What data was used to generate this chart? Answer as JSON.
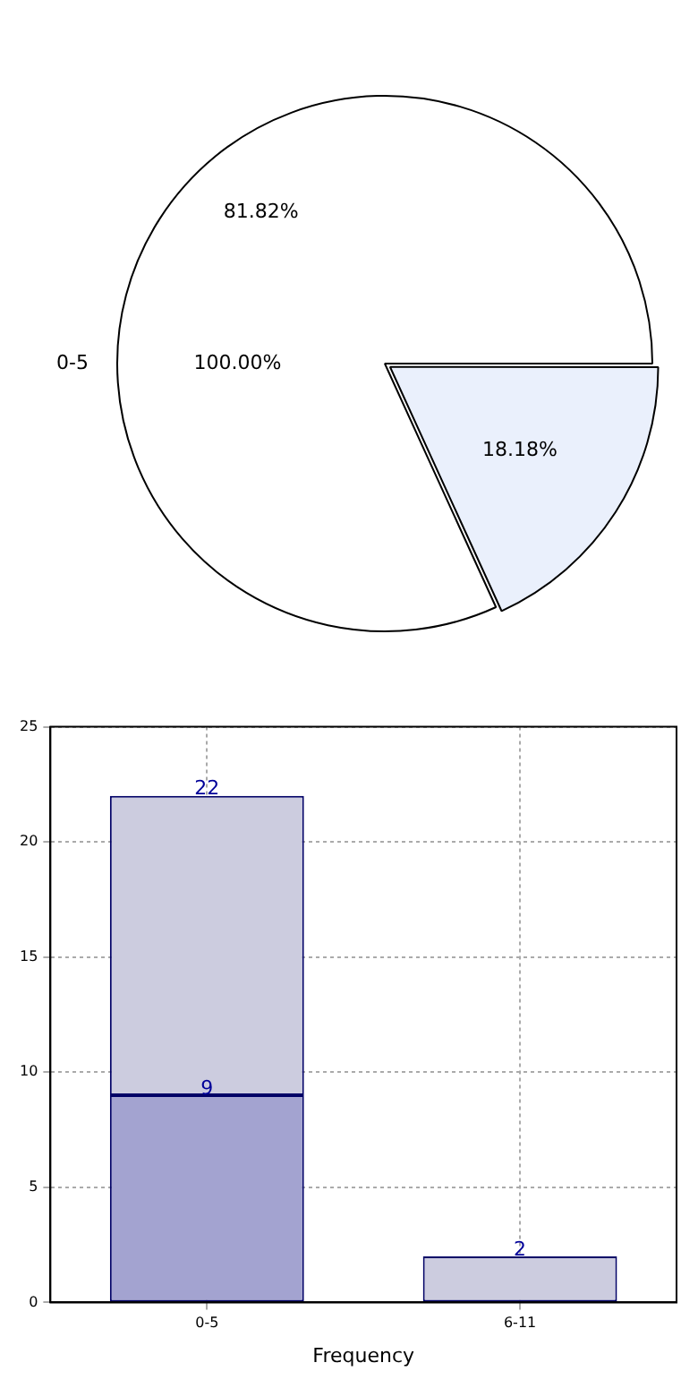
{
  "chart_data": [
    {
      "type": "pie",
      "categories": [
        "0-5",
        null
      ],
      "values": [
        81.82,
        18.18
      ],
      "colors": [
        "#ffffff",
        "#eaf0fc"
      ],
      "value_labels": [
        "81.82%",
        "18.18%"
      ],
      "annotations": [
        "100.00%"
      ]
    },
    {
      "type": "bar",
      "categories": [
        "0-5",
        "6-11"
      ],
      "xlabel": "Frequency",
      "ylim": [
        0,
        25
      ],
      "yticks": [
        0,
        5,
        10,
        15,
        20,
        25
      ],
      "grid": true,
      "stacked": true,
      "totals": [
        "22",
        "2"
      ],
      "series": [
        {
          "color": "#a3a3d0",
          "values": [
            9,
            null
          ],
          "value_labels": [
            "9",
            null
          ]
        },
        {
          "color": "#ccccdf",
          "values": [
            13,
            2
          ]
        }
      ]
    }
  ]
}
